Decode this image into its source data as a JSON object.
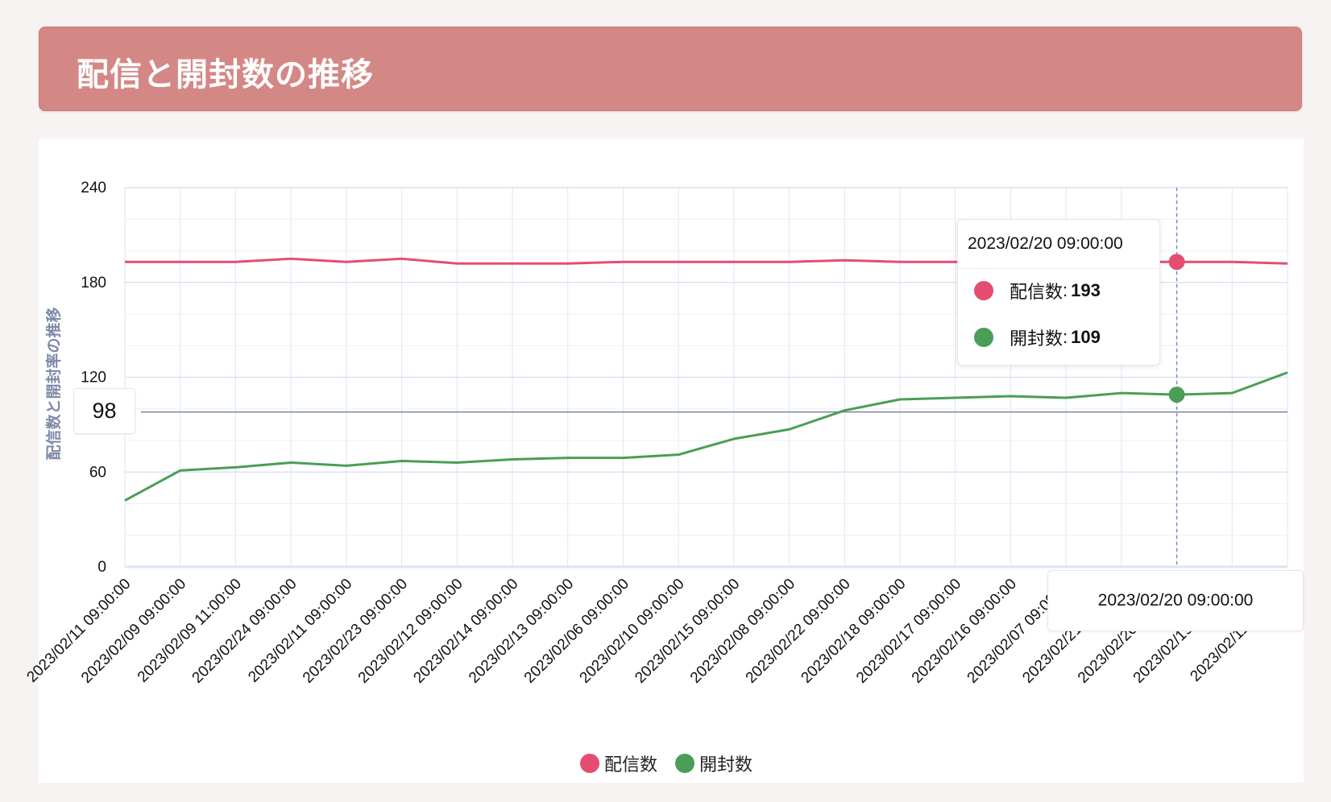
{
  "header": {
    "title": "配信と開封数の推移"
  },
  "chart_data": {
    "type": "line",
    "ylabel": "配信数と開封率の推移",
    "ylim": [
      0,
      240
    ],
    "yticks": [
      0,
      60,
      120,
      180,
      240
    ],
    "grid": true,
    "legend_position": "bottom",
    "categories": [
      "2023/02/11 09:00:00",
      "2023/02/09 09:00:00",
      "2023/02/09 11:00:00",
      "2023/02/24 09:00:00",
      "2023/02/11 09:00:00",
      "2023/02/23 09:00:00",
      "2023/02/12 09:00:00",
      "2023/02/14 09:00:00",
      "2023/02/13 09:00:00",
      "2023/02/06 09:00:00",
      "2023/02/10 09:00:00",
      "2023/02/15 09:00:00",
      "2023/02/08 09:00:00",
      "2023/02/22 09:00:00",
      "2023/02/18 09:00:00",
      "2023/02/17 09:00:00",
      "2023/02/16 09:00:00",
      "2023/02/07 09:00:00",
      "2023/02/21 09:00:00",
      "2023/02/20 09:00:00",
      "2023/02/19 09:00:00",
      "2023/02/11 11:00:00"
    ],
    "series": [
      {
        "name": "配信数",
        "color": "#e44d70",
        "values": [
          193,
          193,
          193,
          195,
          193,
          195,
          192,
          192,
          192,
          193,
          193,
          193,
          193,
          194,
          193,
          193,
          193,
          193,
          193,
          193,
          193,
          192
        ]
      },
      {
        "name": "開封数",
        "color": "#4a9e55",
        "values": [
          42,
          61,
          63,
          66,
          64,
          67,
          66,
          68,
          69,
          69,
          71,
          81,
          87,
          99,
          106,
          107,
          108,
          107,
          110,
          109,
          110,
          123
        ]
      }
    ],
    "reference_line": {
      "value": 98,
      "label": "98"
    },
    "tooltip": {
      "title": "2023/02/20 09:00:00",
      "index": 19,
      "rows": [
        {
          "label": "配信数",
          "value": "193",
          "color": "#e44d70"
        },
        {
          "label": "開封数",
          "value": "109",
          "color": "#4a9e55"
        }
      ]
    },
    "x_axis_cursor_label": "2023/02/20 09:00:00"
  },
  "legend": [
    {
      "label": "配信数",
      "color": "#e44d70"
    },
    {
      "label": "開封数",
      "color": "#4a9e55"
    }
  ]
}
